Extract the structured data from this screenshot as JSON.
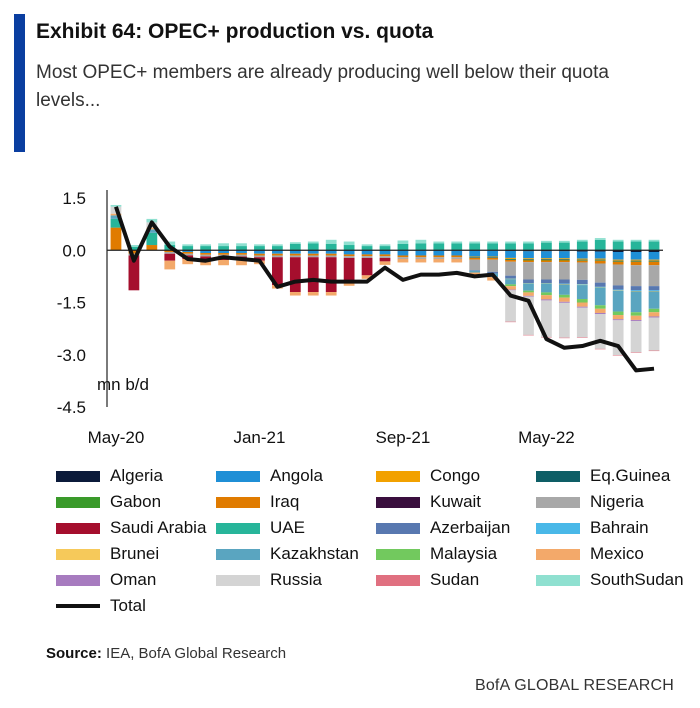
{
  "header": {
    "title": "Exhibit 64: OPEC+ production vs. quota",
    "subtitle": "Most OPEC+ members are already producing well below their quota levels..."
  },
  "footer": {
    "source_label": "Source:",
    "source_text": "IEA, BofA Global Research",
    "brand": "BofA GLOBAL RESEARCH"
  },
  "chart_data": {
    "type": "bar",
    "stacked": true,
    "unit_label": "mn b/d",
    "ylim": [
      -4.5,
      1.5
    ],
    "yticks": [
      "1.5",
      "0.0",
      "-1.5",
      "-3.0",
      "-4.5"
    ],
    "ytick_values": [
      1.5,
      0.0,
      -1.5,
      -3.0,
      -4.5
    ],
    "xtick_labels": [
      "May-20",
      "Jan-21",
      "Sep-21",
      "May-22"
    ],
    "xtick_index": [
      0,
      8,
      16,
      24
    ],
    "legend_position": "bottom",
    "grid": false,
    "periods": 31,
    "series": [
      {
        "name": "Algeria",
        "color": "#0b1a3a",
        "values": [
          0,
          0,
          0,
          0,
          0,
          0,
          0,
          0,
          0,
          0,
          0,
          0,
          0,
          0,
          0,
          0,
          0,
          0,
          0,
          0,
          0,
          0,
          -0.02,
          -0.03,
          -0.03,
          -0.03,
          -0.04,
          -0.04,
          -0.05,
          -0.05,
          -0.05
        ]
      },
      {
        "name": "Angola",
        "color": "#1f8fd6",
        "values": [
          0,
          0,
          0,
          0,
          -0.05,
          -0.08,
          -0.08,
          -0.08,
          -0.1,
          -0.1,
          -0.1,
          -0.1,
          -0.1,
          -0.12,
          -0.12,
          -0.12,
          -0.15,
          -0.15,
          -0.15,
          -0.15,
          -0.18,
          -0.18,
          -0.2,
          -0.2,
          -0.2,
          -0.2,
          -0.2,
          -0.2,
          -0.22,
          -0.22,
          -0.22
        ]
      },
      {
        "name": "Congo",
        "color": "#f2a100",
        "values": [
          0,
          0,
          0,
          0,
          0,
          0,
          0,
          0,
          0,
          0,
          0,
          0,
          0,
          0,
          0,
          0,
          0,
          0,
          0,
          0,
          -0.02,
          -0.02,
          -0.03,
          -0.03,
          -0.03,
          -0.03,
          -0.03,
          -0.03,
          -0.03,
          -0.03,
          -0.03
        ]
      },
      {
        "name": "Eq.Guinea",
        "color": "#0e5e66",
        "values": [
          0,
          0,
          0,
          0,
          0,
          0,
          0,
          0,
          0,
          0,
          0,
          0,
          0,
          0,
          0,
          0,
          0,
          0,
          0,
          0,
          -0.02,
          -0.02,
          -0.02,
          -0.02,
          -0.02,
          -0.02,
          -0.02,
          -0.02,
          -0.02,
          -0.02,
          -0.02
        ]
      },
      {
        "name": "Gabon",
        "color": "#3a9a2a",
        "values": [
          0,
          0,
          0,
          0,
          0,
          0,
          0,
          0,
          0,
          0,
          0,
          0,
          0,
          0,
          0,
          0,
          0,
          0,
          0,
          0,
          0,
          0,
          -0.01,
          -0.01,
          -0.01,
          -0.01,
          -0.01,
          -0.01,
          -0.01,
          -0.01,
          -0.01
        ]
      },
      {
        "name": "Iraq",
        "color": "#e07b00",
        "values": [
          0.65,
          -0.1,
          0.15,
          -0.05,
          -0.05,
          -0.05,
          -0.05,
          -0.05,
          -0.05,
          -0.05,
          -0.05,
          -0.05,
          -0.05,
          -0.05,
          -0.05,
          -0.05,
          -0.05,
          -0.05,
          -0.05,
          -0.05,
          -0.05,
          -0.05,
          -0.05,
          -0.05,
          -0.05,
          -0.05,
          -0.05,
          -0.08,
          -0.08,
          -0.1,
          -0.1
        ]
      },
      {
        "name": "Kuwait",
        "color": "#3a0f3e",
        "values": [
          0,
          0,
          0,
          0,
          0,
          0,
          0,
          0,
          0,
          0,
          0,
          0,
          0,
          0,
          0,
          0,
          0,
          0,
          0,
          0,
          0,
          0,
          0,
          0,
          0,
          0,
          0,
          0,
          0,
          0,
          0
        ]
      },
      {
        "name": "Nigeria",
        "color": "#a8a8a8",
        "values": [
          0,
          -0.05,
          0,
          -0.05,
          -0.05,
          -0.05,
          -0.05,
          -0.05,
          -0.05,
          -0.05,
          -0.05,
          -0.05,
          -0.05,
          -0.05,
          -0.05,
          -0.05,
          -0.05,
          -0.05,
          -0.05,
          -0.05,
          -0.3,
          -0.35,
          -0.4,
          -0.5,
          -0.5,
          -0.5,
          -0.5,
          -0.55,
          -0.6,
          -0.6,
          -0.6
        ]
      },
      {
        "name": "Saudi Arabia",
        "color": "#a50e2d",
        "values": [
          0,
          -1.0,
          0,
          -0.2,
          -0.1,
          -0.1,
          -0.1,
          -0.1,
          -0.1,
          -0.8,
          -1.0,
          -1.0,
          -1.0,
          -0.7,
          -0.5,
          -0.1,
          0,
          0,
          0,
          0,
          0,
          0,
          0,
          0,
          0,
          0,
          0,
          0,
          0,
          0,
          0
        ]
      },
      {
        "name": "UAE",
        "color": "#27b59a",
        "values": [
          0.25,
          0.1,
          0.35,
          0.15,
          0.12,
          0.12,
          0.12,
          0.12,
          0.12,
          0.12,
          0.18,
          0.2,
          0.18,
          0.15,
          0.12,
          0.12,
          0.18,
          0.2,
          0.2,
          0.2,
          0.2,
          0.2,
          0.2,
          0.2,
          0.22,
          0.22,
          0.25,
          0.3,
          0.25,
          0.25,
          0.25
        ]
      },
      {
        "name": "Azerbaijan",
        "color": "#5878b0",
        "values": [
          0,
          0,
          0,
          0,
          0,
          0,
          0,
          0,
          0,
          0,
          0,
          0,
          0,
          0,
          0,
          0,
          0,
          0,
          0,
          0,
          -0.02,
          -0.05,
          -0.08,
          -0.1,
          -0.1,
          -0.12,
          -0.12,
          -0.12,
          -0.12,
          -0.12,
          -0.12
        ]
      },
      {
        "name": "Bahrain",
        "color": "#49b8e8",
        "values": [
          0,
          0,
          0,
          0,
          0,
          0,
          0,
          0,
          0,
          0,
          0,
          0,
          0,
          0,
          0,
          0,
          0,
          0,
          0,
          0,
          0,
          0,
          -0.01,
          -0.01,
          -0.01,
          -0.01,
          -0.02,
          -0.02,
          -0.02,
          -0.02,
          -0.02
        ]
      },
      {
        "name": "Brunei",
        "color": "#f6c95a",
        "values": [
          0,
          0,
          0,
          0,
          0,
          0,
          0,
          0,
          0,
          0,
          0,
          0,
          0,
          0,
          0,
          0,
          0,
          0,
          0,
          0,
          0,
          0,
          -0.01,
          -0.01,
          -0.01,
          -0.01,
          -0.01,
          -0.01,
          -0.01,
          -0.01,
          -0.01
        ]
      },
      {
        "name": "Kazakhstan",
        "color": "#5aa5c0",
        "values": [
          0.1,
          0,
          0.1,
          0,
          0,
          0,
          0,
          0,
          0,
          0,
          0,
          0,
          0,
          0,
          0,
          0,
          0,
          0,
          0,
          0,
          -0.05,
          -0.1,
          -0.15,
          -0.2,
          -0.25,
          -0.3,
          -0.4,
          -0.5,
          -0.6,
          -0.6,
          -0.5
        ]
      },
      {
        "name": "Malaysia",
        "color": "#72c95e",
        "values": [
          0,
          0,
          0,
          0,
          0,
          0,
          0,
          0,
          0,
          0,
          0,
          0,
          0,
          0,
          0,
          0,
          0,
          0,
          0,
          0,
          0,
          0,
          -0.05,
          -0.05,
          -0.08,
          -0.08,
          -0.1,
          -0.1,
          -0.1,
          -0.1,
          -0.1
        ]
      },
      {
        "name": "Mexico",
        "color": "#f3a96a",
        "values": [
          0.05,
          0,
          0.05,
          -0.25,
          -0.15,
          -0.15,
          -0.15,
          -0.15,
          -0.1,
          -0.1,
          -0.1,
          -0.1,
          -0.1,
          -0.1,
          -0.1,
          -0.1,
          -0.1,
          -0.1,
          -0.1,
          -0.1,
          -0.1,
          -0.1,
          -0.1,
          -0.1,
          -0.12,
          -0.12,
          -0.12,
          -0.12,
          -0.12,
          -0.12,
          -0.12
        ]
      },
      {
        "name": "Oman",
        "color": "#a77bbf",
        "values": [
          0,
          0,
          0,
          0,
          0,
          0,
          0,
          0,
          0,
          0,
          0,
          0,
          0,
          0,
          0,
          0,
          0,
          0,
          0,
          0,
          0,
          0,
          -0.02,
          -0.02,
          -0.03,
          -0.03,
          -0.03,
          -0.03,
          -0.03,
          -0.03,
          -0.03
        ]
      },
      {
        "name": "Russia",
        "color": "#d4d4d4",
        "values": [
          0.2,
          0,
          0.15,
          0,
          0,
          0,
          0,
          0,
          0,
          0,
          0,
          0,
          0,
          0,
          0,
          0,
          0,
          0,
          0,
          0,
          0,
          0,
          -0.9,
          -1.1,
          -1.05,
          -1.0,
          -0.85,
          -1.0,
          -1.0,
          -0.9,
          -0.95
        ]
      },
      {
        "name": "Sudan",
        "color": "#e07080",
        "values": [
          0,
          0,
          0,
          0,
          0,
          0,
          0,
          0,
          0,
          0,
          0,
          0,
          0,
          0,
          0,
          0,
          0,
          0,
          0,
          0,
          0,
          0,
          -0.01,
          -0.01,
          -0.01,
          -0.01,
          -0.01,
          -0.01,
          -0.01,
          -0.01,
          -0.01
        ]
      },
      {
        "name": "SouthSudan",
        "color": "#8fe0d0",
        "values": [
          0.05,
          0.05,
          0.1,
          0.1,
          0.05,
          0.05,
          0.08,
          0.08,
          0.05,
          0.05,
          0.05,
          0.05,
          0.12,
          0.1,
          0.05,
          0.05,
          0.1,
          0.1,
          0.05,
          0.05,
          0.05,
          0.05,
          0.05,
          0.05,
          0.05,
          0.05,
          0.05,
          0.05,
          0.05,
          0.05,
          0.05
        ]
      }
    ],
    "total": {
      "name": "Total",
      "color": "#111111",
      "values": [
        1.25,
        -0.3,
        0.8,
        0.1,
        -0.25,
        -0.3,
        -0.2,
        -0.25,
        -0.3,
        -1.05,
        -0.9,
        -0.85,
        -0.9,
        -0.9,
        -0.9,
        -0.5,
        -0.85,
        -0.7,
        -0.7,
        -0.65,
        -0.75,
        -0.7,
        -1.3,
        -1.45,
        -2.55,
        -2.8,
        -2.75,
        -2.6,
        -2.75,
        -3.45,
        -3.4
      ]
    }
  }
}
